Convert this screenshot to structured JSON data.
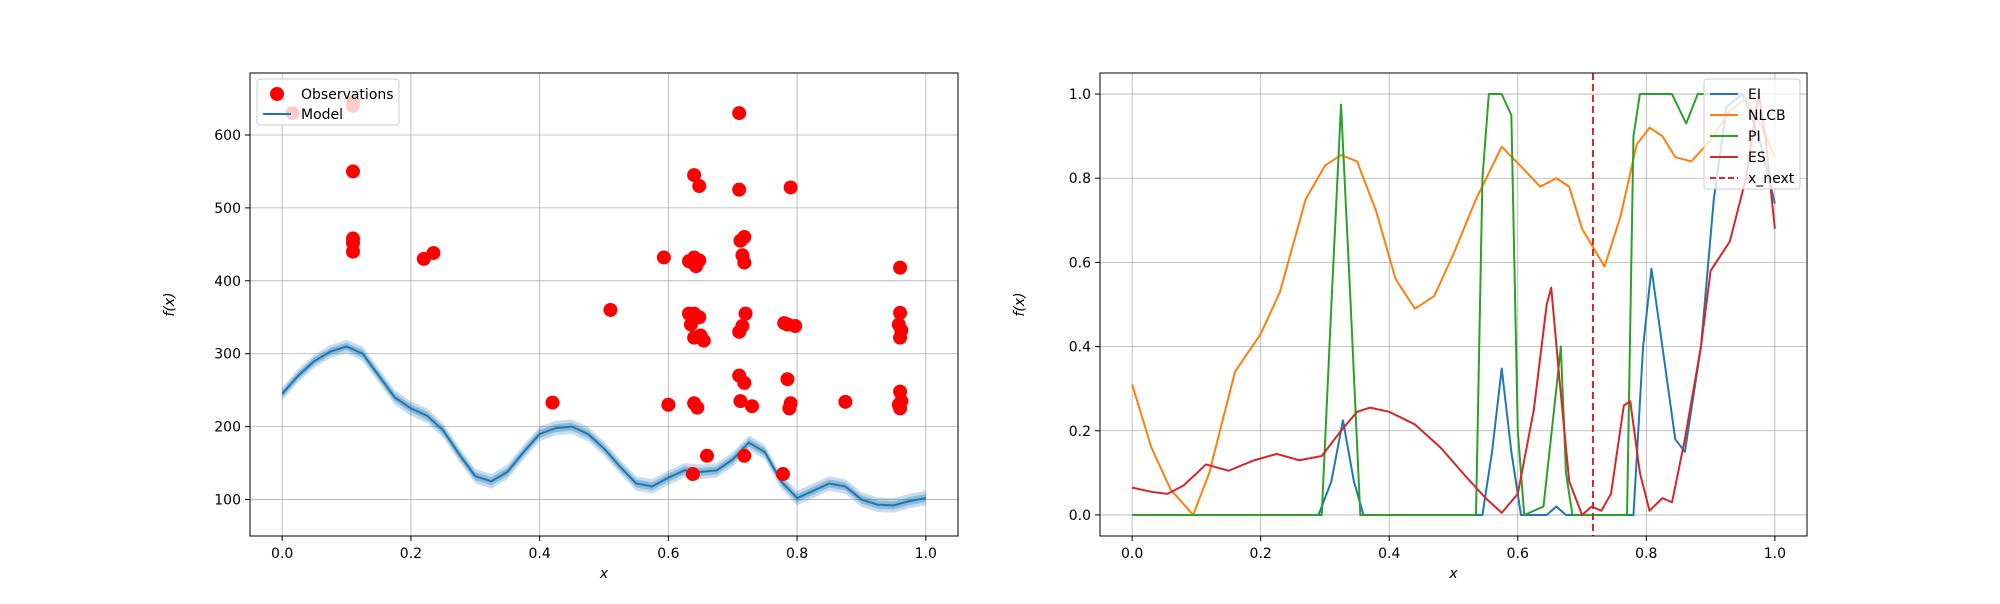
{
  "chart_data": [
    {
      "type": "scatter",
      "xlabel": "x",
      "ylabel": "f(x)",
      "xlim": [
        -0.05,
        1.05
      ],
      "ylim": [
        50,
        685
      ],
      "xticks": [
        0.0,
        0.2,
        0.4,
        0.6,
        0.8,
        1.0
      ],
      "xtick_labels": [
        "0.0",
        "0.2",
        "0.4",
        "0.6",
        "0.8",
        "1.0"
      ],
      "yticks": [
        100,
        200,
        300,
        400,
        500,
        600
      ],
      "ytick_labels": [
        "100",
        "200",
        "300",
        "400",
        "500",
        "600"
      ],
      "grid": true,
      "legend_position": "top-left",
      "legend": [
        {
          "label": "Observations",
          "kind": "marker",
          "color": "#ff0000"
        },
        {
          "label": "Model",
          "kind": "line",
          "color": "#1f77b4"
        }
      ],
      "observations": {
        "color": "#ff0000",
        "points": [
          [
            0.016,
            630
          ],
          [
            0.11,
            645
          ],
          [
            0.11,
            640
          ],
          [
            0.11,
            550
          ],
          [
            0.11,
            458
          ],
          [
            0.11,
            452
          ],
          [
            0.11,
            440
          ],
          [
            0.22,
            430
          ],
          [
            0.235,
            438
          ],
          [
            0.42,
            233
          ],
          [
            0.51,
            360
          ],
          [
            0.593,
            432
          ],
          [
            0.6,
            230
          ],
          [
            0.632,
            427
          ],
          [
            0.637,
            425
          ],
          [
            0.64,
            545
          ],
          [
            0.64,
            432
          ],
          [
            0.643,
            420
          ],
          [
            0.648,
            530
          ],
          [
            0.648,
            428
          ],
          [
            0.632,
            355
          ],
          [
            0.64,
            355
          ],
          [
            0.648,
            350
          ],
          [
            0.635,
            340
          ],
          [
            0.64,
            322
          ],
          [
            0.65,
            325
          ],
          [
            0.655,
            318
          ],
          [
            0.64,
            232
          ],
          [
            0.645,
            226
          ],
          [
            0.638,
            135
          ],
          [
            0.66,
            160
          ],
          [
            0.71,
            630
          ],
          [
            0.71,
            525
          ],
          [
            0.712,
            455
          ],
          [
            0.718,
            460
          ],
          [
            0.715,
            435
          ],
          [
            0.718,
            425
          ],
          [
            0.72,
            355
          ],
          [
            0.71,
            330
          ],
          [
            0.715,
            338
          ],
          [
            0.71,
            270
          ],
          [
            0.718,
            260
          ],
          [
            0.712,
            235
          ],
          [
            0.73,
            228
          ],
          [
            0.718,
            160
          ],
          [
            0.79,
            528
          ],
          [
            0.78,
            342
          ],
          [
            0.785,
            340
          ],
          [
            0.797,
            338
          ],
          [
            0.785,
            265
          ],
          [
            0.79,
            232
          ],
          [
            0.788,
            225
          ],
          [
            0.778,
            135
          ],
          [
            0.875,
            234
          ],
          [
            0.96,
            418
          ],
          [
            0.96,
            356
          ],
          [
            0.958,
            340
          ],
          [
            0.962,
            332
          ],
          [
            0.96,
            322
          ],
          [
            0.96,
            248
          ],
          [
            0.962,
            235
          ],
          [
            0.958,
            230
          ],
          [
            0.96,
            225
          ]
        ]
      },
      "model": {
        "color": "#1f77b4",
        "x": [
          0,
          0.025,
          0.05,
          0.075,
          0.1,
          0.125,
          0.15,
          0.175,
          0.2,
          0.225,
          0.25,
          0.275,
          0.3,
          0.325,
          0.35,
          0.375,
          0.4,
          0.425,
          0.45,
          0.475,
          0.5,
          0.525,
          0.55,
          0.575,
          0.6,
          0.625,
          0.65,
          0.675,
          0.7,
          0.725,
          0.75,
          0.775,
          0.8,
          0.825,
          0.85,
          0.875,
          0.9,
          0.925,
          0.95,
          0.975,
          1.0
        ],
        "mean": [
          245,
          270,
          290,
          303,
          310,
          300,
          270,
          240,
          225,
          215,
          195,
          162,
          132,
          125,
          138,
          165,
          190,
          198,
          200,
          190,
          170,
          145,
          122,
          118,
          130,
          140,
          138,
          140,
          155,
          178,
          165,
          125,
          102,
          112,
          122,
          118,
          100,
          93,
          92,
          98,
          102
        ],
        "band": [
          9,
          9,
          9,
          9,
          9,
          10,
          10,
          10,
          10,
          10,
          10,
          10,
          10,
          10,
          10,
          10,
          10,
          10,
          10,
          10,
          10,
          10,
          10,
          10,
          10,
          10,
          10,
          10,
          10,
          10,
          10,
          10,
          10,
          10,
          10,
          10,
          10,
          10,
          10,
          10,
          10
        ]
      }
    },
    {
      "type": "line",
      "xlabel": "x",
      "ylabel": "f(x)",
      "xlim": [
        -0.05,
        1.05
      ],
      "ylim": [
        -0.05,
        1.05
      ],
      "xticks": [
        0.0,
        0.2,
        0.4,
        0.6,
        0.8,
        1.0
      ],
      "xtick_labels": [
        "0.0",
        "0.2",
        "0.4",
        "0.6",
        "0.8",
        "1.0"
      ],
      "yticks": [
        0.0,
        0.2,
        0.4,
        0.6,
        0.8,
        1.0
      ],
      "ytick_labels": [
        "0.0",
        "0.2",
        "0.4",
        "0.6",
        "0.8",
        "1.0"
      ],
      "grid": true,
      "legend_position": "top-right",
      "x_next": {
        "label": "x_next",
        "value": 0.717,
        "color": "#d62728"
      },
      "series": [
        {
          "name": "EI",
          "color": "#1f77b4",
          "points": [
            [
              0,
              0
            ],
            [
              0.29,
              0
            ],
            [
              0.31,
              0.08
            ],
            [
              0.328,
              0.225
            ],
            [
              0.345,
              0.08
            ],
            [
              0.36,
              0
            ],
            [
              0.545,
              0
            ],
            [
              0.56,
              0.15
            ],
            [
              0.575,
              0.348
            ],
            [
              0.59,
              0.15
            ],
            [
              0.605,
              0
            ],
            [
              0.645,
              0
            ],
            [
              0.66,
              0.02
            ],
            [
              0.675,
              0
            ],
            [
              0.78,
              0
            ],
            [
              0.795,
              0.4
            ],
            [
              0.808,
              0.585
            ],
            [
              0.825,
              0.4
            ],
            [
              0.845,
              0.18
            ],
            [
              0.86,
              0.15
            ],
            [
              0.885,
              0.4
            ],
            [
              0.905,
              0.75
            ],
            [
              0.925,
              0.97
            ],
            [
              0.95,
              1.0
            ],
            [
              0.975,
              0.9
            ],
            [
              1.0,
              0.74
            ]
          ]
        },
        {
          "name": "NLCB",
          "color": "#ff7f0e",
          "points": [
            [
              0,
              0.31
            ],
            [
              0.03,
              0.16
            ],
            [
              0.06,
              0.06
            ],
            [
              0.095,
              0.0
            ],
            [
              0.12,
              0.1
            ],
            [
              0.16,
              0.34
            ],
            [
              0.2,
              0.43
            ],
            [
              0.23,
              0.53
            ],
            [
              0.27,
              0.75
            ],
            [
              0.3,
              0.83
            ],
            [
              0.325,
              0.855
            ],
            [
              0.35,
              0.84
            ],
            [
              0.38,
              0.72
            ],
            [
              0.41,
              0.56
            ],
            [
              0.44,
              0.49
            ],
            [
              0.47,
              0.52
            ],
            [
              0.5,
              0.62
            ],
            [
              0.535,
              0.75
            ],
            [
              0.575,
              0.875
            ],
            [
              0.61,
              0.82
            ],
            [
              0.635,
              0.78
            ],
            [
              0.66,
              0.8
            ],
            [
              0.68,
              0.78
            ],
            [
              0.7,
              0.68
            ],
            [
              0.735,
              0.59
            ],
            [
              0.76,
              0.71
            ],
            [
              0.785,
              0.88
            ],
            [
              0.805,
              0.92
            ],
            [
              0.825,
              0.9
            ],
            [
              0.845,
              0.85
            ],
            [
              0.87,
              0.84
            ],
            [
              0.9,
              0.89
            ],
            [
              0.93,
              0.96
            ],
            [
              0.955,
              0.99
            ],
            [
              0.98,
              0.92
            ],
            [
              1.0,
              0.85
            ]
          ]
        },
        {
          "name": "PI",
          "color": "#2ca02c",
          "points": [
            [
              0,
              0
            ],
            [
              0.295,
              0
            ],
            [
              0.31,
              0.5
            ],
            [
              0.325,
              0.975
            ],
            [
              0.34,
              0.5
            ],
            [
              0.355,
              0
            ],
            [
              0.535,
              0
            ],
            [
              0.545,
              0.8
            ],
            [
              0.555,
              1.0
            ],
            [
              0.575,
              1.0
            ],
            [
              0.59,
              0.95
            ],
            [
              0.6,
              0.2
            ],
            [
              0.61,
              0
            ],
            [
              0.64,
              0.02
            ],
            [
              0.66,
              0.3
            ],
            [
              0.667,
              0.4
            ],
            [
              0.675,
              0.1
            ],
            [
              0.685,
              0
            ],
            [
              0.77,
              0
            ],
            [
              0.78,
              0.9
            ],
            [
              0.79,
              1.0
            ],
            [
              0.84,
              1.0
            ],
            [
              0.862,
              0.93
            ],
            [
              0.88,
              1.0
            ],
            [
              0.94,
              1.0
            ],
            [
              0.95,
              1.0
            ]
          ]
        },
        {
          "name": "ES",
          "color": "#d62728",
          "points": [
            [
              0,
              0.065
            ],
            [
              0.03,
              0.055
            ],
            [
              0.055,
              0.05
            ],
            [
              0.08,
              0.07
            ],
            [
              0.115,
              0.12
            ],
            [
              0.15,
              0.105
            ],
            [
              0.19,
              0.13
            ],
            [
              0.225,
              0.145
            ],
            [
              0.26,
              0.13
            ],
            [
              0.295,
              0.14
            ],
            [
              0.325,
              0.2
            ],
            [
              0.35,
              0.245
            ],
            [
              0.37,
              0.255
            ],
            [
              0.4,
              0.245
            ],
            [
              0.44,
              0.215
            ],
            [
              0.48,
              0.16
            ],
            [
              0.52,
              0.09
            ],
            [
              0.55,
              0.04
            ],
            [
              0.575,
              0.005
            ],
            [
              0.6,
              0.05
            ],
            [
              0.625,
              0.25
            ],
            [
              0.645,
              0.5
            ],
            [
              0.652,
              0.54
            ],
            [
              0.665,
              0.32
            ],
            [
              0.68,
              0.08
            ],
            [
              0.7,
              0.0
            ],
            [
              0.715,
              0.02
            ],
            [
              0.73,
              0.01
            ],
            [
              0.745,
              0.05
            ],
            [
              0.765,
              0.26
            ],
            [
              0.775,
              0.27
            ],
            [
              0.79,
              0.1
            ],
            [
              0.805,
              0.01
            ],
            [
              0.825,
              0.04
            ],
            [
              0.84,
              0.03
            ],
            [
              0.86,
              0.18
            ],
            [
              0.885,
              0.4
            ],
            [
              0.9,
              0.58
            ],
            [
              0.93,
              0.65
            ],
            [
              0.955,
              0.8
            ],
            [
              0.975,
              1.0
            ],
            [
              0.985,
              0.9
            ],
            [
              1.0,
              0.68
            ]
          ]
        }
      ]
    }
  ]
}
